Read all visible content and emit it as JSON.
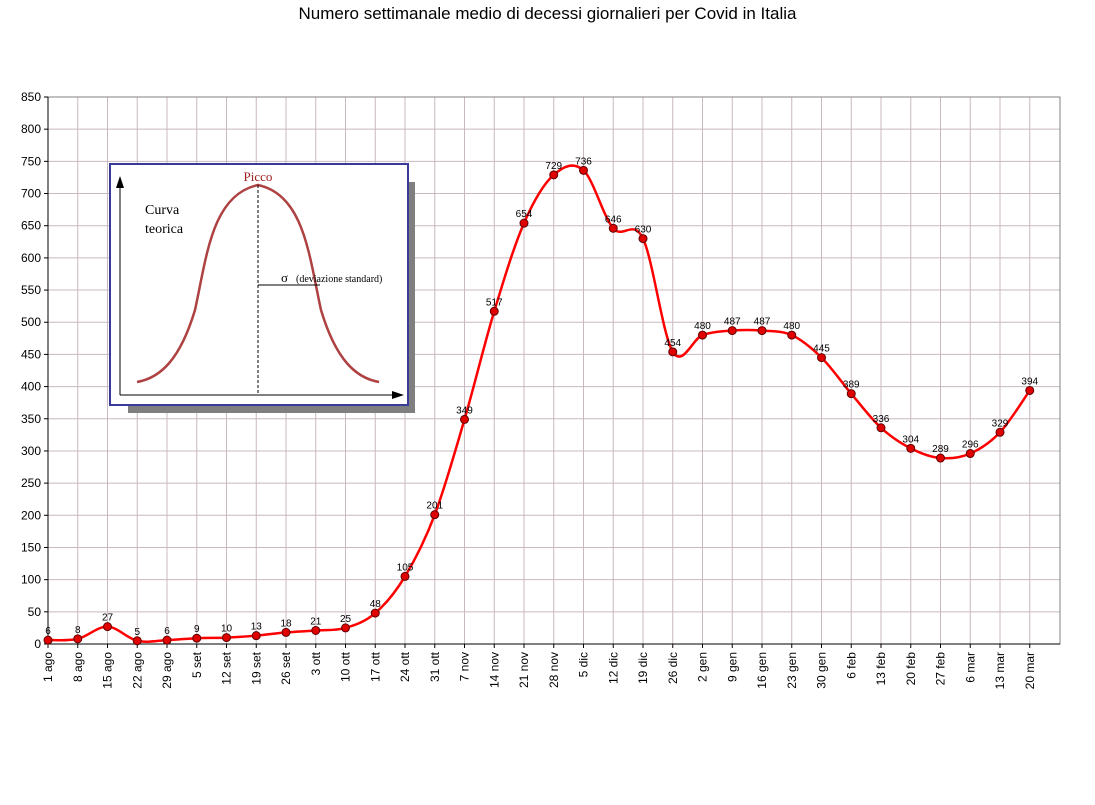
{
  "chart_data": {
    "type": "line",
    "title": "Numero settimanale medio di decessi giornalieri per Covid in Italia",
    "xlabel": "",
    "ylabel": "",
    "ylim": [
      0,
      850
    ],
    "yticks": [
      0,
      50,
      100,
      150,
      200,
      250,
      300,
      350,
      400,
      450,
      500,
      550,
      600,
      650,
      700,
      750,
      800,
      850
    ],
    "grid": true,
    "legend": "none",
    "categories": [
      "1 ago",
      "8 ago",
      "15 ago",
      "22 ago",
      "29 ago",
      "5 set",
      "12 set",
      "19 set",
      "26 set",
      "3 ott",
      "10 ott",
      "17 ott",
      "24 ott",
      "31 ott",
      "7 nov",
      "14 nov",
      "21 nov",
      "28 nov",
      "5 dic",
      "12 dic",
      "19 dic",
      "26 dic",
      "2 gen",
      "9 gen",
      "16 gen",
      "23 gen",
      "30 gen",
      "6 feb",
      "13 feb",
      "20 feb",
      "27 feb",
      "6 mar",
      "13 mar",
      "20 mar"
    ],
    "series": [
      {
        "values": [
          6,
          8,
          27,
          5,
          6,
          9,
          10,
          13,
          18,
          21,
          25,
          48,
          105,
          201,
          349,
          517,
          654,
          729,
          736,
          646,
          630,
          454,
          480,
          487,
          487,
          480,
          445,
          389,
          336,
          304,
          289,
          296,
          329,
          394
        ],
        "color": "#ff0000"
      }
    ],
    "inset": {
      "ylabel": "Curva teorica",
      "peak_label": "Picco",
      "sigma_symbol": "σ",
      "sigma_label": "(deviazione standard)"
    }
  }
}
